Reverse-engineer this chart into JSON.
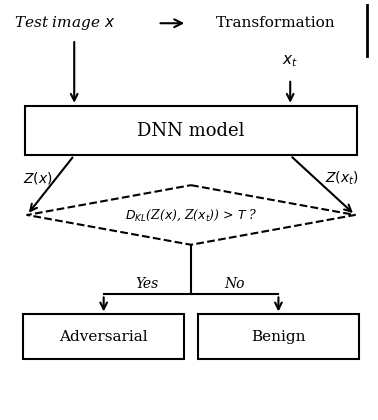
{
  "bg_color": "#ffffff",
  "fig_width": 3.78,
  "fig_height": 4.2,
  "dpi": 100,
  "dnn_box_label": "DNN model",
  "diamond_label": "$D_{KL}$(Z($x$), Z($x_t$)) > $T$ ?",
  "left_output_label": "Adversarial",
  "right_output_label": "Benign",
  "zx_label": "$Z(x)$",
  "zxt_label": "$Z(x_t)$",
  "xt_label": "$x_t$",
  "yes_label": "Yes",
  "no_label": "No",
  "top_left_text": "Test image $x$",
  "top_right_text": "Transformation"
}
